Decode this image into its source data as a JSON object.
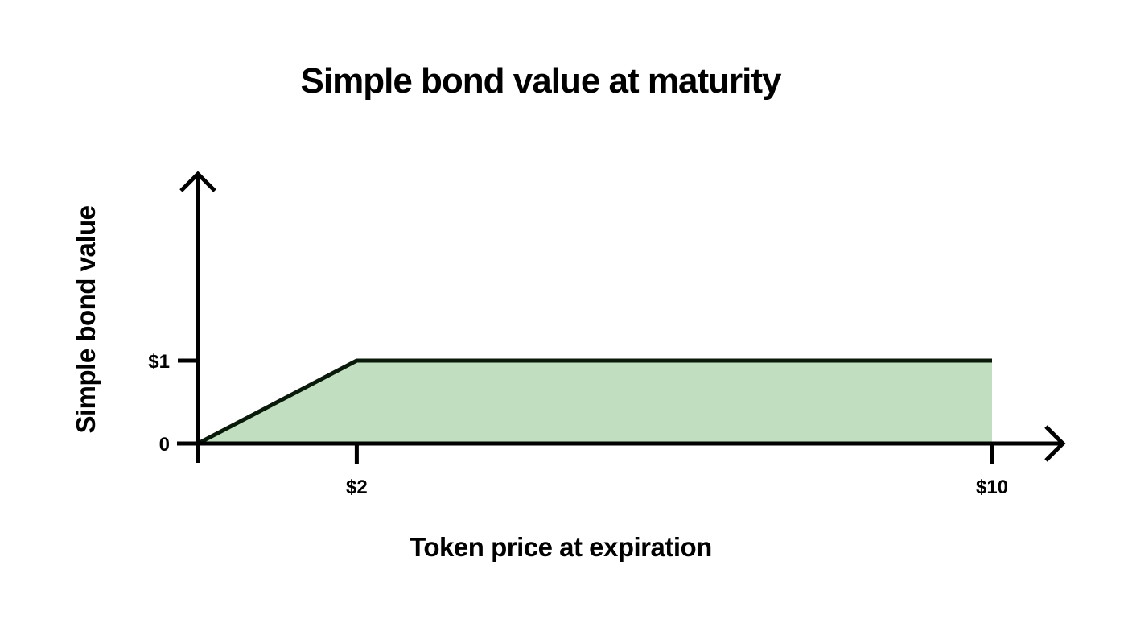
{
  "chart_data": {
    "type": "area",
    "title": "Simple bond value at maturity",
    "xlabel": "Token price at expiration",
    "ylabel": "Simple bond value",
    "xlim": [
      0,
      10
    ],
    "ylim": [
      0,
      1
    ],
    "grid": false,
    "legend": "none",
    "x_ticks": [
      {
        "value": 2,
        "label": "$2"
      },
      {
        "value": 10,
        "label": "$10"
      }
    ],
    "y_ticks": [
      {
        "value": 0,
        "label": "0"
      },
      {
        "value": 1,
        "label": "$1"
      }
    ],
    "series": [
      {
        "name": "Simple bond value",
        "x": [
          0,
          2,
          10
        ],
        "y": [
          0,
          1,
          1
        ]
      }
    ],
    "colors": {
      "fill": "#c1dfc0",
      "line": "#0a1a0a",
      "axis": "#000000"
    }
  }
}
